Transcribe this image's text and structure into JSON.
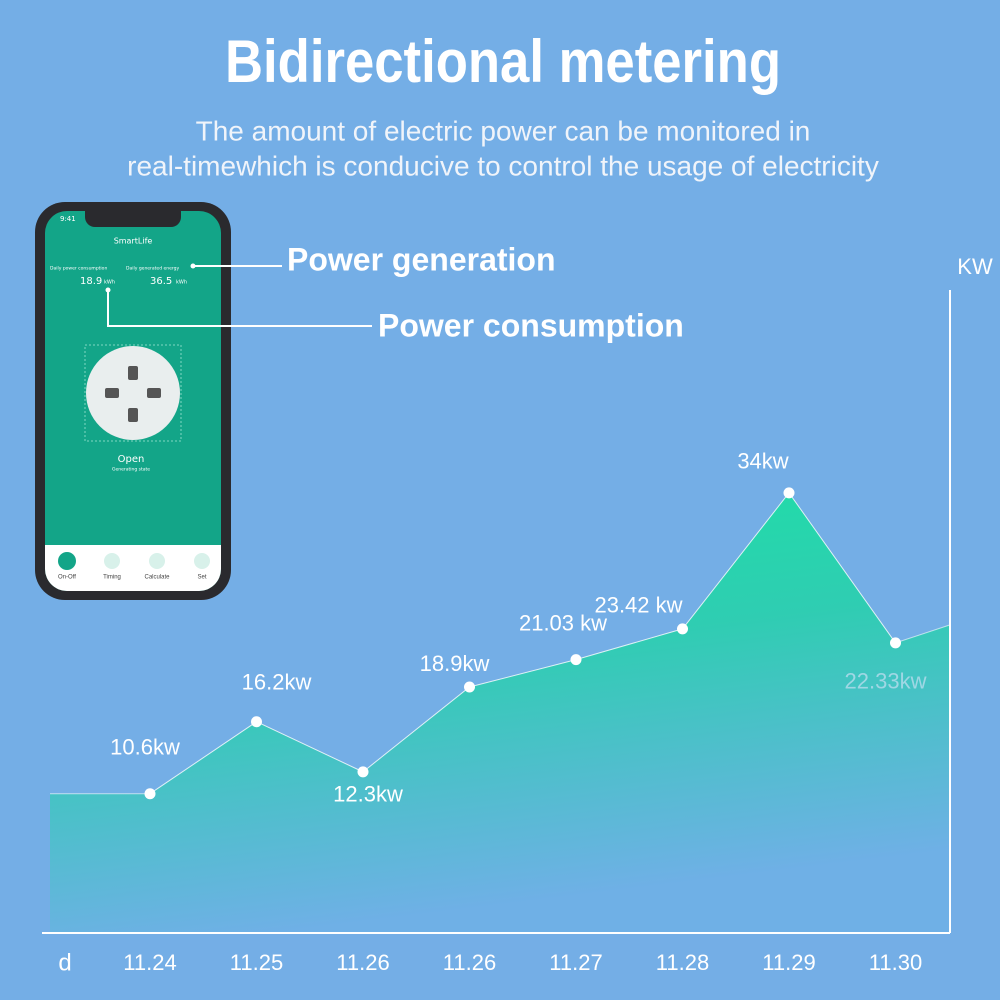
{
  "chart_data": {
    "type": "area",
    "title": "Bidirectional metering",
    "subtitle": [
      "The amount of electric power can be monitored in",
      "real-timewhich is conducive to control the usage of electricity"
    ],
    "x_axis_label": "d",
    "y_axis_label": "KW",
    "categories": [
      "11.24",
      "11.25",
      "11.26",
      "11.26",
      "11.27",
      "11.28",
      "11.29",
      "11.30"
    ],
    "values": [
      10.6,
      16.2,
      12.3,
      18.9,
      21.03,
      23.42,
      34,
      22.33
    ],
    "value_labels": [
      "10.6kw",
      "16.2kw",
      "12.3kw",
      "18.9kw",
      "21.03 kw",
      "23.42 kw",
      "34kw",
      "22.33kw"
    ],
    "ylim": [
      0,
      35
    ],
    "color": "#1ddfa6"
  },
  "annotations": [
    "Power generation",
    "Power consumption"
  ],
  "phone": {
    "time": "9:41",
    "app": "SmartLife",
    "consumption_label": "Daily power consumption",
    "generation_label": "Daily generated energy",
    "consumption_value": "18.9",
    "consumption_unit": "kWh",
    "generation_value": "36.5",
    "generation_unit": "kWh",
    "state": "Open",
    "state_sub": "Generating state",
    "tabs": [
      "On-Off",
      "Timing",
      "Calculate",
      "Set"
    ]
  }
}
